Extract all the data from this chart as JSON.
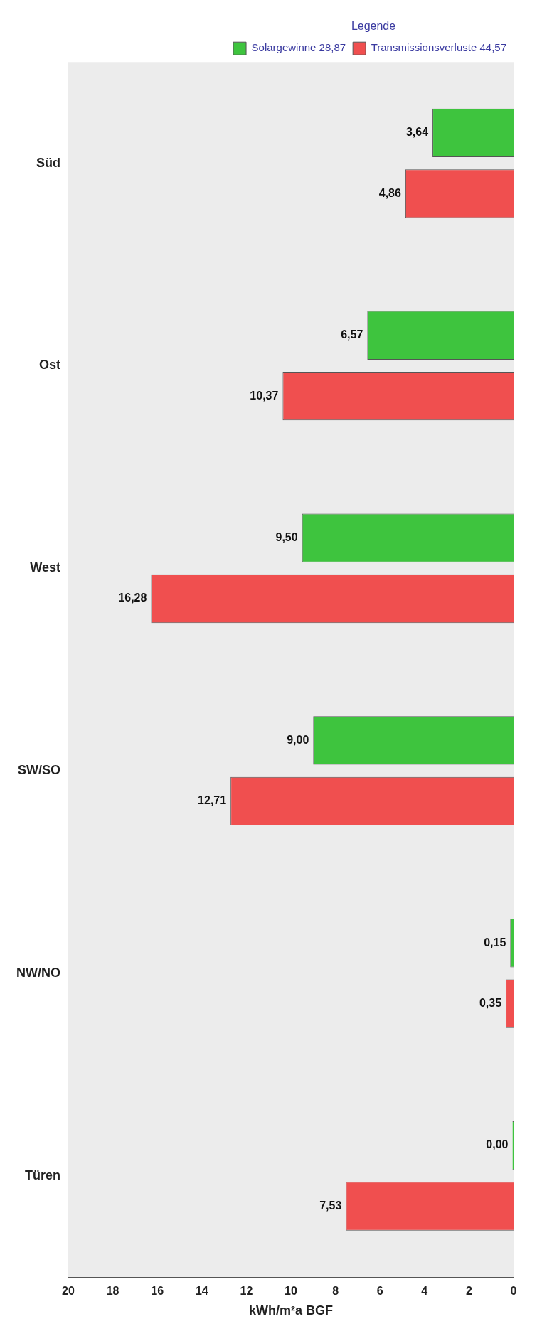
{
  "chart_data": {
    "type": "bar",
    "orientation": "horizontal",
    "xlabel": "kWh/m²a BGF",
    "legend_title": "Legende",
    "legend": "top right",
    "categories": [
      "Süd",
      "Ost",
      "West",
      "SW/SO",
      "NW/NO",
      "Türen"
    ],
    "series": [
      {
        "name": "Solargewinne 28,87",
        "color": "#3ec43e",
        "values": [
          3.64,
          6.57,
          9.5,
          9.0,
          0.15,
          0.0
        ],
        "value_labels": [
          "3,64",
          "6,57",
          "9,50",
          "9,00",
          "0,15",
          "0,00"
        ]
      },
      {
        "name": "Transmissionsverluste 44,57",
        "color": "#f04f4f",
        "values": [
          4.86,
          10.37,
          16.28,
          12.71,
          0.35,
          7.53
        ],
        "value_labels": [
          "4,86",
          "10,37",
          "16,28",
          "12,71",
          "0,35",
          "7,53"
        ]
      }
    ],
    "xlim": [
      20,
      0
    ],
    "xticks": [
      20,
      18,
      16,
      14,
      12,
      10,
      8,
      6,
      4,
      2,
      0
    ],
    "grid": false
  }
}
